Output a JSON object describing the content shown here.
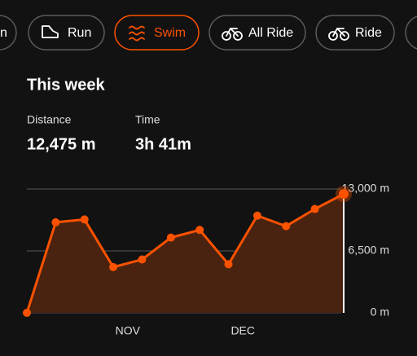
{
  "tabs": [
    "n",
    "Run",
    "Swim",
    "All Ride",
    "Ride"
  ],
  "active_tab": "Swim",
  "header": {
    "title": "This week"
  },
  "stats": [
    {
      "label": "Distance",
      "value": "12,475 m"
    },
    {
      "label": "Time",
      "value": "3h 41m"
    }
  ],
  "chart_data": {
    "type": "area",
    "categories": [
      null,
      null,
      null,
      null,
      "NOV",
      null,
      null,
      null,
      "DEC",
      null,
      null,
      null
    ],
    "series": [
      {
        "color": "#fc5200",
        "values": [
          0,
          9500,
          9800,
          4800,
          5600,
          7900,
          8700,
          5100,
          10200,
          9100,
          10900,
          12475
        ]
      }
    ],
    "ylim": [
      0,
      13000
    ],
    "yticks": [
      {
        "value": 0,
        "label": "0 m"
      },
      {
        "value": 6500,
        "label": "6,500 m"
      },
      {
        "value": 13000,
        "label": "13,000 m"
      }
    ],
    "grid": true
  }
}
